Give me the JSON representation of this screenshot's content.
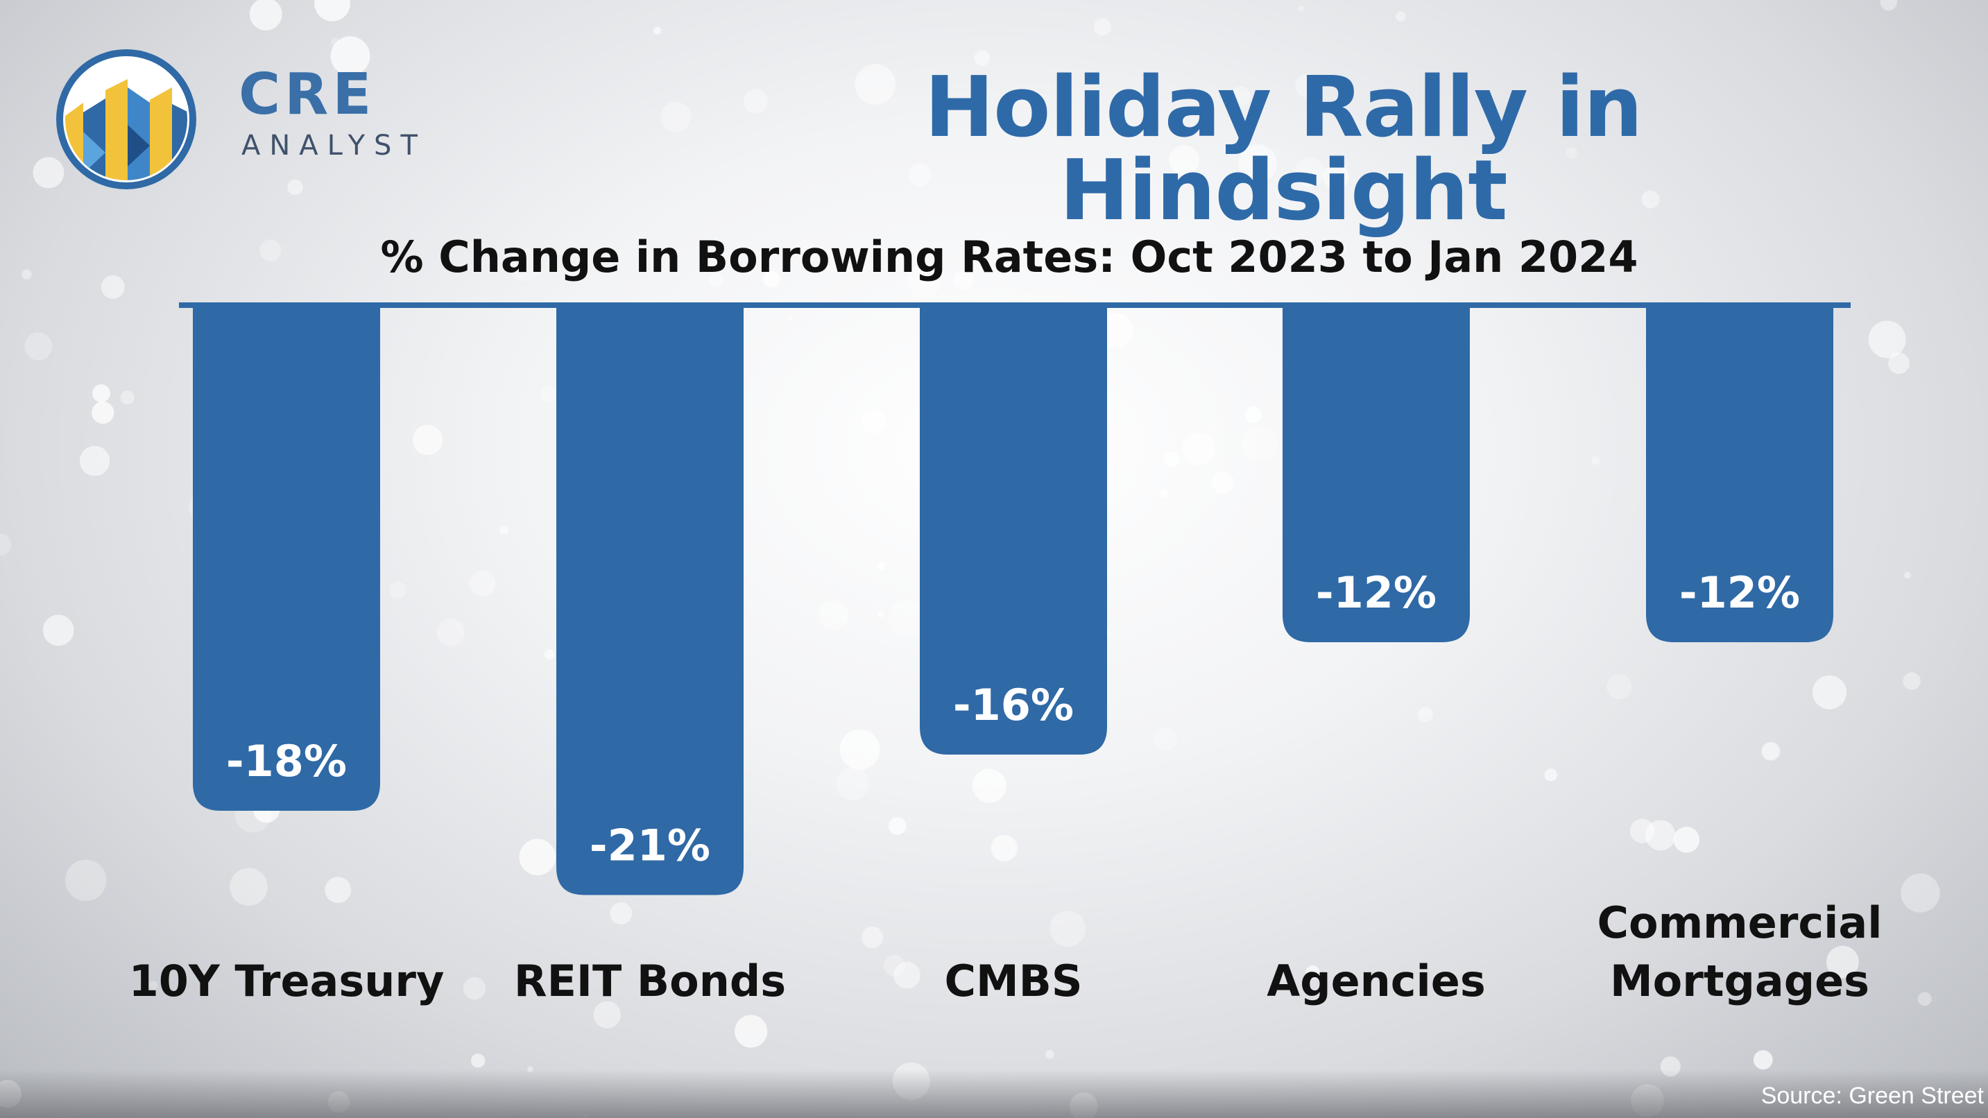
{
  "brand": {
    "name": "CRE",
    "tagline": "ANALYST"
  },
  "title": "Holiday Rally in Hindsight",
  "source": "Source: Green Street",
  "colors": {
    "bar": "#2f69a6",
    "title": "#2f6aa8",
    "axis": "#2f69a6",
    "label_text": "#ffffff",
    "category_text": "#111111"
  },
  "chart_data": {
    "type": "bar",
    "title": "% Change in Borrowing Rates: Oct 2023 to Jan 2024",
    "categories": [
      [
        "10Y Treasury"
      ],
      [
        "REIT Bonds"
      ],
      [
        "CMBS"
      ],
      [
        "Agencies"
      ],
      [
        "Commercial",
        "Mortgages"
      ]
    ],
    "values": [
      -18,
      -21,
      -16,
      -12,
      -12
    ],
    "value_labels": [
      "-18%",
      "-21%",
      "-16%",
      "-12%",
      "-12%"
    ],
    "unit": "%",
    "xlabel": "",
    "ylabel": "",
    "ylim": [
      -22,
      0
    ],
    "grid": false,
    "legend": "none"
  }
}
